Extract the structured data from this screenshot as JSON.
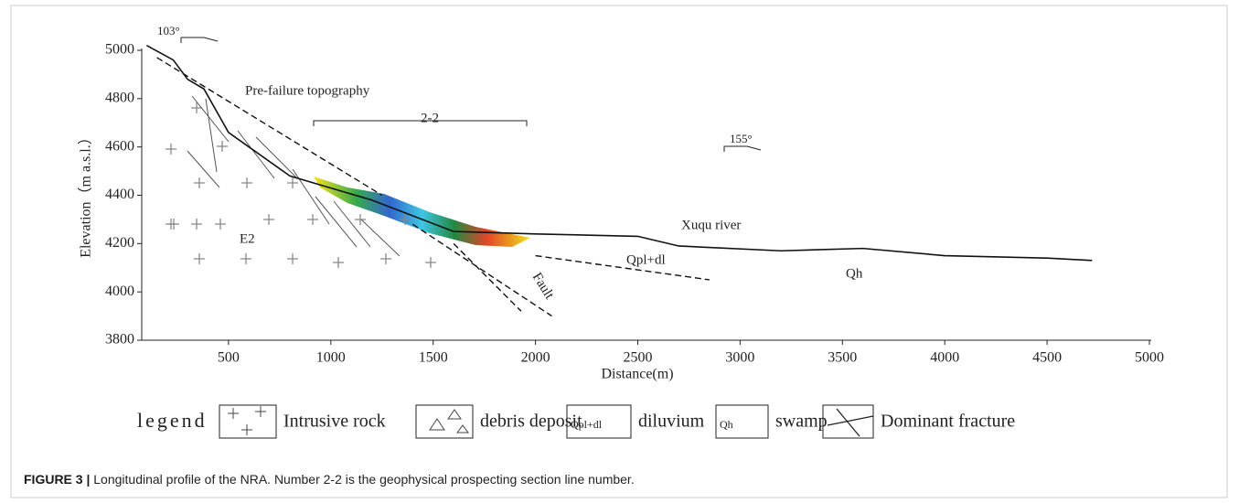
{
  "chart_data": {
    "type": "profile",
    "y_label": "Elevation（m a.s.l.）",
    "x_label": "Distance(m)",
    "xlim": [
      0,
      5000
    ],
    "ylim": [
      3800,
      5000
    ],
    "xticks": [
      500,
      1000,
      1500,
      2000,
      2500,
      3000,
      3500,
      4000,
      4500,
      5000
    ],
    "yticks": [
      3800,
      4000,
      4200,
      4400,
      4600,
      4800,
      5000
    ],
    "lines": [
      {
        "style": "solid",
        "color": "#111",
        "x": [
          100,
          230,
          300,
          380,
          500,
          800,
          1200,
          1600,
          2000,
          2500,
          2700,
          3200,
          3600,
          4000,
          4500,
          4720
        ],
        "y": [
          5020,
          4960,
          4880,
          4840,
          4660,
          4480,
          4380,
          4250,
          4240,
          4230,
          4190,
          4170,
          4180,
          4150,
          4140,
          4130
        ]
      },
      {
        "style": "dashed",
        "color": "#111",
        "x": [
          150,
          1250
        ],
        "y": [
          4970,
          4400
        ]
      },
      {
        "style": "dashed",
        "color": "#111",
        "x": [
          1400,
          2080
        ],
        "y": [
          4280,
          3900
        ]
      },
      {
        "style": "dashed",
        "color": "#111",
        "x": [
          1600,
          1930
        ],
        "y": [
          4200,
          3920
        ]
      },
      {
        "style": "dashed",
        "color": "#111",
        "x": [
          2000,
          2850
        ],
        "y": [
          4150,
          4050
        ]
      }
    ],
    "annotations": [
      "Pre-failure topography",
      "2-2",
      "Xuqu river",
      "E2",
      "Qpl+dl",
      "Qh",
      "Fault",
      "103°",
      "155°"
    ],
    "legend": {
      "title": "legend",
      "items": [
        {
          "icon_text": null,
          "label": "Intrusive rock"
        },
        {
          "icon_text": null,
          "label": "debris deposit"
        },
        {
          "icon_text": "Qpl+dl",
          "label": "diluvium"
        },
        {
          "icon_text": "Qh",
          "label": "swamp"
        },
        {
          "icon_text": null,
          "label": "Dominant fracture"
        }
      ]
    }
  },
  "caption": {
    "label": "FIGURE 3 |",
    "text": "Longitudinal profile of the NRA. Number 2-2 is the geophysical prospecting section line number."
  }
}
